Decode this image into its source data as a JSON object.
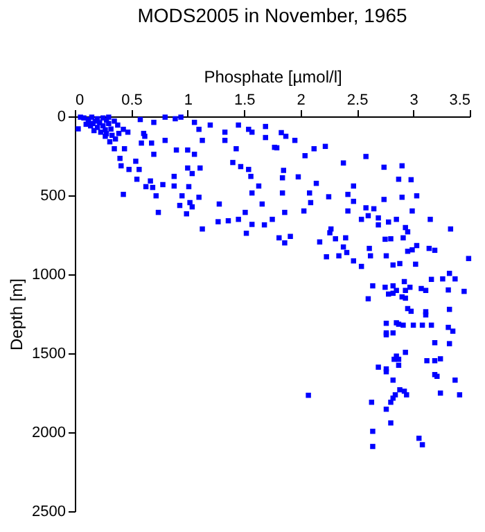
{
  "chart_data": {
    "type": "scatter",
    "title": "MODS2005 in November, 1965",
    "xlabel": "Phosphate [µmol/l]",
    "ylabel": "Depth [m]",
    "xlim": [
      0,
      3.5
    ],
    "ylim": [
      2500,
      0
    ],
    "xticks": [
      0,
      0.5,
      1,
      1.5,
      2,
      2.5,
      3,
      3.5
    ],
    "yticks": [
      0,
      500,
      1000,
      1500,
      2000,
      2500
    ],
    "grid": false,
    "marker": "square",
    "series": [
      {
        "color": "#0000ff",
        "x": [
          0.08,
          0.12,
          0.15,
          0.18,
          0.2,
          0.22,
          0.25,
          0.28,
          0.1,
          0.14,
          0.2,
          0.25,
          0.3,
          0.32,
          0.17,
          0.23,
          0.28,
          0.35,
          0.38,
          0.12,
          0.3,
          0.05,
          0.16,
          0.27,
          0.33,
          0.03,
          0.58,
          0.7,
          0.8,
          0.89,
          0.94,
          1.06,
          1.2,
          1.1,
          1.33,
          1.45,
          1.54,
          1.57,
          1.69,
          1.69,
          1.13,
          1.33,
          1.43,
          1.77,
          0.59,
          0.62,
          0.8,
          0.9,
          1.0,
          1.06,
          0.7,
          1.4,
          1.47,
          1.54,
          1.56,
          1.63,
          1.57,
          1.66,
          1.75,
          1.68,
          1.57,
          1.51,
          1.45,
          1.52,
          1.36,
          1.27,
          1.28,
          1.13,
          0.99,
          0.93,
          1.04,
          1.02,
          1.1,
          0.95,
          0.74,
          0.72,
          0.78,
          0.88,
          1.01,
          1.0,
          1.11,
          1.04,
          0.88,
          0.67,
          0.69,
          0.63,
          0.55,
          0.43,
          0.57,
          0.48,
          0.41,
          0.54,
          0.4,
          0.35,
          0.44,
          0.31,
          0.27,
          0.39,
          0.47,
          0.43,
          0.36,
          0.61,
          0.68,
          1.83,
          1.87,
          1.95,
          1.79,
          2.12,
          2.22,
          2.04,
          2.38,
          2.58,
          2.74,
          2.9,
          2.87,
          2.98,
          1.85,
          1.84,
          1.98,
          2.14,
          1.84,
          2.08,
          2.25,
          2.42,
          2.47,
          2.47,
          2.74,
          2.9,
          3.03,
          2.09,
          2.03,
          1.86,
          2.42,
          2.58,
          2.65,
          2.99,
          2.6,
          2.54,
          2.69,
          2.78,
          2.85,
          3.15,
          2.69,
          2.93,
          2.95,
          3.33,
          2.27,
          2.26,
          1.81,
          1.91,
          1.86,
          2.17,
          2.31,
          2.4,
          2.38,
          2.41,
          2.61,
          2.75,
          2.8,
          2.91,
          3.03,
          2.99,
          2.95,
          3.14,
          3.19,
          2.23,
          2.34,
          2.47,
          2.54,
          2.62,
          2.76,
          2.82,
          2.88,
          3.02,
          3.49,
          3.32,
          3.26,
          3.37,
          3.16,
          2.92,
          2.64,
          2.75,
          2.82,
          2.97,
          3.07,
          3.11,
          2.93,
          2.85,
          2.78,
          2.82,
          2.9,
          2.93,
          3.31,
          3.45,
          2.6,
          2.95,
          3.32,
          2.98,
          3.11,
          3.11,
          2.76,
          2.85,
          2.87,
          2.91,
          3.0,
          3.08,
          3.16,
          3.31,
          3.35,
          2.76,
          2.76,
          2.82,
          3.19,
          3.32,
          2.93,
          2.85,
          2.87,
          2.83,
          2.87,
          3.12,
          3.19,
          3.24,
          2.69,
          2.76,
          2.76,
          3.19,
          3.21,
          2.82,
          3.37,
          2.88,
          2.92,
          2.94,
          2.84,
          3.24,
          3.41,
          2.07,
          2.82,
          2.8,
          2.63,
          2.76,
          2.8,
          2.64,
          3.05,
          3.08,
          2.64
        ],
        "values": [
          10,
          20,
          5,
          30,
          15,
          40,
          10,
          25,
          50,
          60,
          70,
          60,
          45,
          80,
          90,
          100,
          110,
          30,
          55,
          35,
          5,
          5,
          45,
          85,
          120,
          79,
          20,
          38,
          5,
          15,
          5,
          38,
          55,
          82,
          100,
          55,
          82,
          100,
          64,
          134,
          152,
          152,
          205,
          196,
          169,
          126,
          152,
          213,
          213,
          240,
          240,
          292,
          318,
          336,
          380,
          441,
          485,
          555,
          652,
          687,
          684,
          608,
          652,
          740,
          661,
          667,
          555,
          713,
          617,
          564,
          573,
          546,
          512,
          503,
          608,
          503,
          432,
          441,
          445,
          327,
          327,
          362,
          380,
          409,
          450,
          445,
          398,
          494,
          336,
          336,
          313,
          284,
          266,
          205,
          205,
          161,
          126,
          108,
          100,
          82,
          143,
          108,
          169,
          103,
          126,
          152,
          199,
          205,
          190,
          249,
          295,
          254,
          322,
          313,
          398,
          401,
          342,
          389,
          383,
          424,
          485,
          485,
          509,
          494,
          441,
          538,
          526,
          512,
          503,
          546,
          599,
          608,
          599,
          579,
          585,
          599,
          629,
          652,
          643,
          669,
          652,
          652,
          687,
          704,
          731,
          713,
          713,
          737,
          769,
          760,
          801,
          795,
          775,
          769,
          827,
          862,
          836,
          778,
          775,
          769,
          818,
          845,
          854,
          836,
          848,
          889,
          883,
          915,
          950,
          883,
          883,
          941,
          932,
          936,
          900,
          994,
          1029,
          1029,
          1032,
          1046,
          1073,
          1082,
          1073,
          1082,
          1090,
          1102,
          1102,
          1102,
          1125,
          1120,
          1143,
          1151,
          1099,
          1108,
          1155,
          1217,
          1222,
          1234,
          1237,
          1257,
          1310,
          1307,
          1316,
          1322,
          1322,
          1322,
          1322,
          1336,
          1360,
          1371,
          1383,
          1371,
          1433,
          1439,
          1494,
          1518,
          1538,
          1538,
          1576,
          1547,
          1547,
          1535,
          1588,
          1599,
          1617,
          1635,
          1646,
          1670,
          1670,
          1731,
          1740,
          1763,
          1763,
          1752,
          1763,
          1766,
          1784,
          1810,
          1810,
          1854,
          1941,
          1994,
          2038,
          2079,
          2090
        ]
      }
    ]
  }
}
